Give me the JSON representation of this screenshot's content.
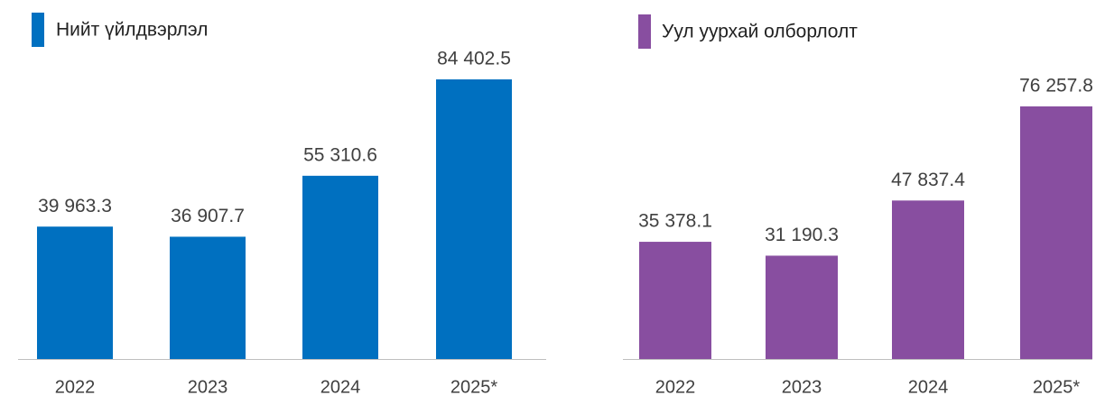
{
  "chart_data": [
    {
      "type": "bar",
      "title": "Нийт үйлдвэрлэл",
      "color": "#0070c0",
      "categories": [
        "2022",
        "2023",
        "2024",
        "2025*"
      ],
      "values": [
        39963.3,
        36907.7,
        55310.6,
        84402.5
      ],
      "value_labels": [
        "39 963.3",
        "36 907.7",
        "55 310.6",
        "84 402.5"
      ]
    },
    {
      "type": "bar",
      "title": "Уул уурхай олборлолт",
      "color": "#884ea0",
      "categories": [
        "2022",
        "2023",
        "2024",
        "2025*"
      ],
      "values": [
        35378.1,
        31190.3,
        47837.4,
        76257.8
      ],
      "value_labels": [
        "35 378.1",
        "31 190.3",
        "47 837.4",
        "76 257.8"
      ]
    }
  ]
}
